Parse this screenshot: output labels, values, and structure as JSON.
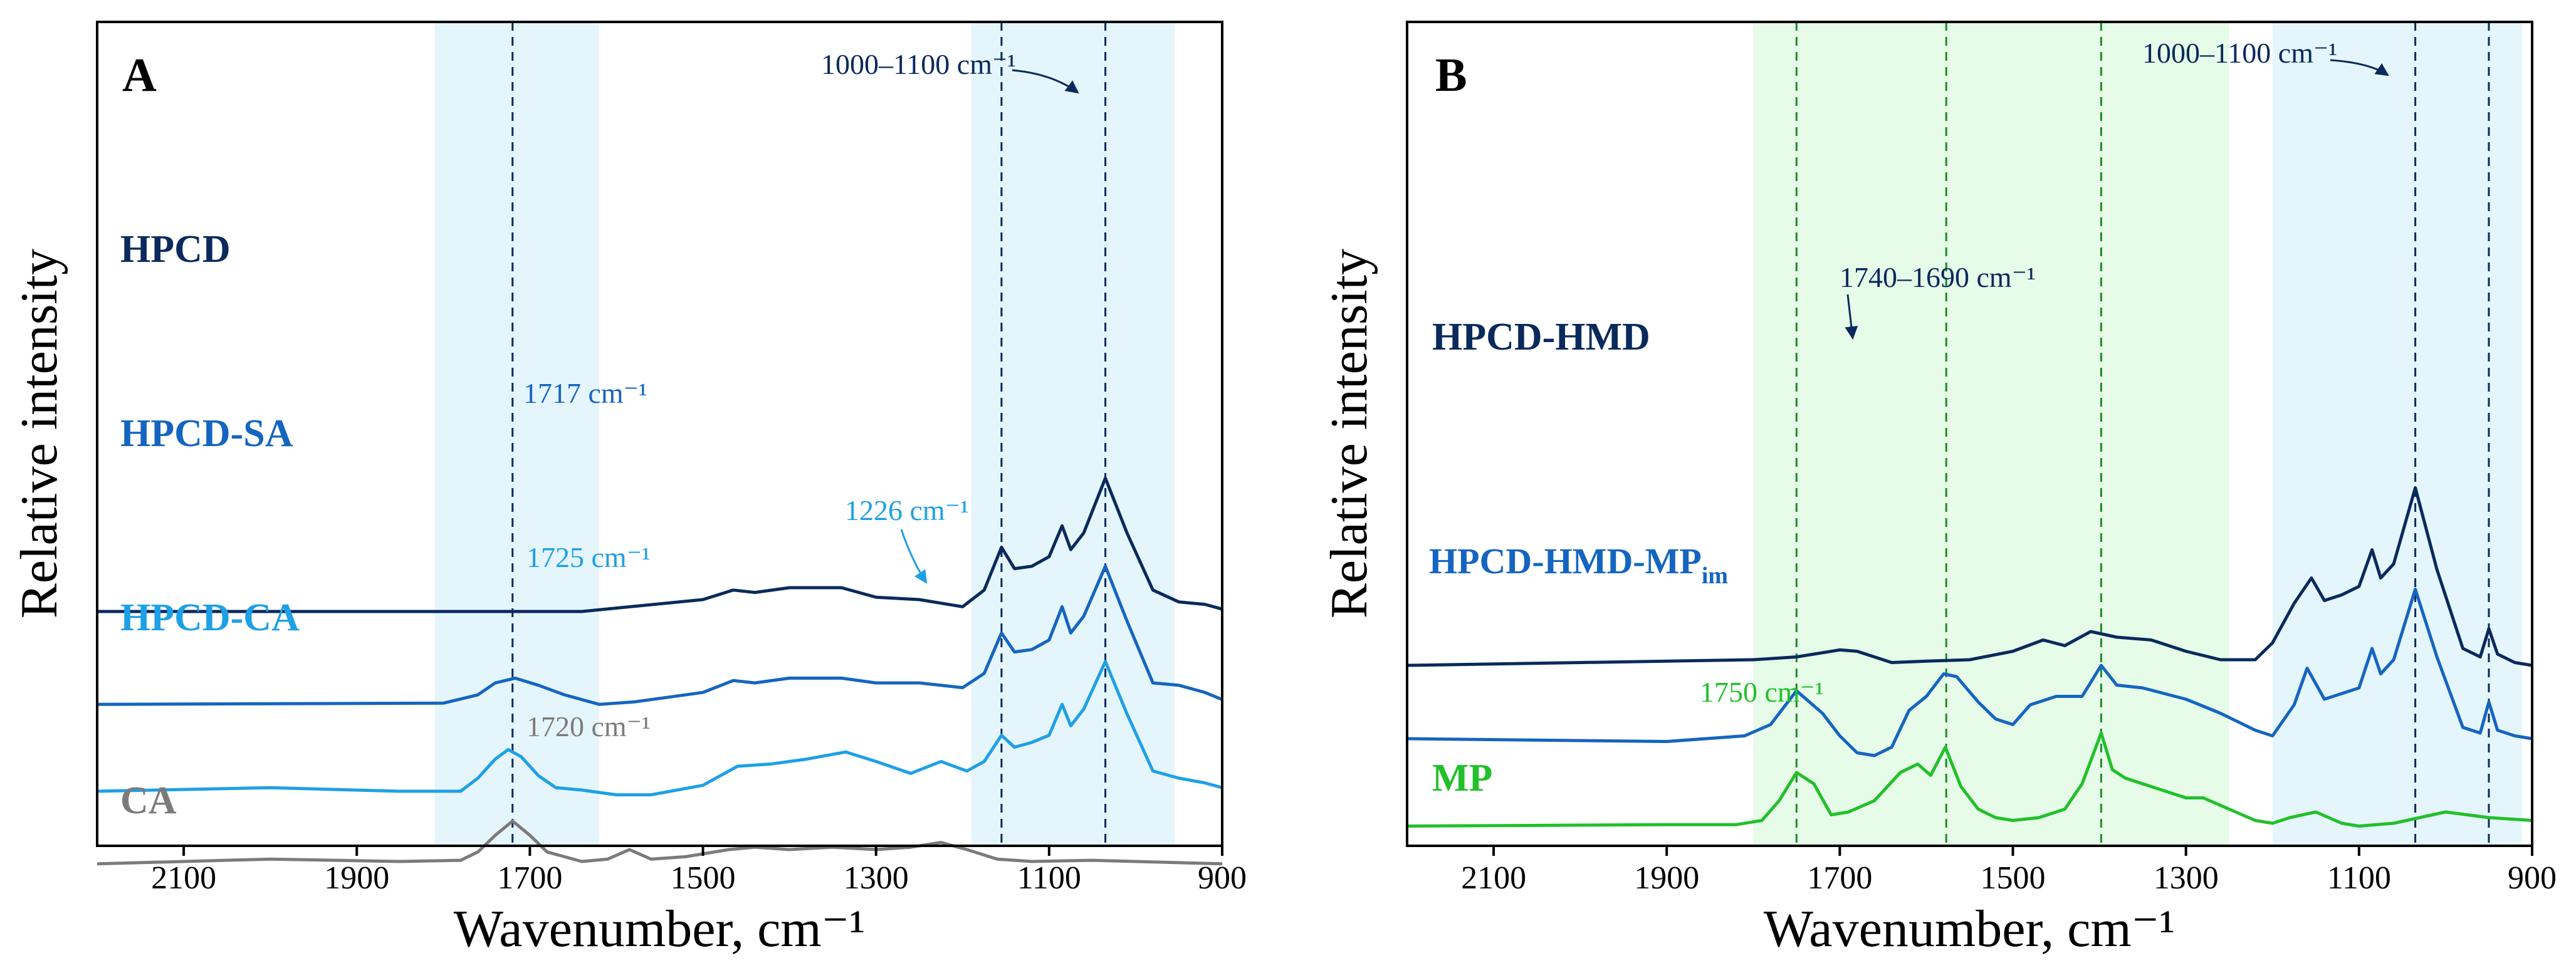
{
  "colors": {
    "navy": "#0a2a5c",
    "blue": "#1565c0",
    "light_blue": "#1ea0e6",
    "gray": "#7b7b7b",
    "green": "#22c02a",
    "dark_green": "#1d8a2e",
    "cyan_band": "#e5f5fc",
    "green_band": "#e6fbe8"
  },
  "chart_data": [
    {
      "type": "line",
      "panel_label": "A",
      "xlabel": "Wavenumber, cm⁻¹",
      "ylabel": "Relative intensity",
      "xlim": [
        2200,
        900
      ],
      "x_reversed": true,
      "xticks": [
        2100,
        1900,
        1700,
        1500,
        1300,
        1100,
        900
      ],
      "y_ticks_shown": false,
      "grid": false,
      "shaded_bands": [
        [
          1810,
          1620
        ],
        [
          1190,
          955
        ]
      ],
      "vlines": [
        1720,
        1155,
        1035
      ],
      "series": [
        {
          "name": "HPCD",
          "color": "navy",
          "baseline": 8.0,
          "x": [
            2200,
            1900,
            1640,
            1500,
            1465,
            1440,
            1400,
            1340,
            1300,
            1250,
            1200,
            1175,
            1155,
            1140,
            1120,
            1100,
            1085,
            1075,
            1060,
            1035,
            1010,
            980,
            950,
            920,
            900
          ],
          "y": [
            0,
            0,
            0,
            0.5,
            0.9,
            0.8,
            1.0,
            1.0,
            0.6,
            0.5,
            0.2,
            0.9,
            2.7,
            1.8,
            1.9,
            2.3,
            3.6,
            2.6,
            3.3,
            5.6,
            3.3,
            0.9,
            0.4,
            0.3,
            0.1
          ]
        },
        {
          "name": "HPCD-SA",
          "color": "blue",
          "baseline": 4.1,
          "x": [
            2200,
            1800,
            1760,
            1740,
            1717,
            1690,
            1660,
            1620,
            1580,
            1500,
            1465,
            1440,
            1400,
            1340,
            1300,
            1250,
            1200,
            1175,
            1155,
            1140,
            1120,
            1100,
            1085,
            1075,
            1060,
            1035,
            1010,
            980,
            950,
            920,
            900
          ],
          "y": [
            0,
            0.05,
            0.4,
            0.9,
            1.1,
            0.8,
            0.4,
            0.0,
            0.1,
            0.5,
            1.0,
            0.9,
            1.1,
            1.1,
            0.9,
            0.9,
            0.7,
            1.3,
            3.0,
            2.2,
            2.3,
            2.7,
            4.1,
            3.0,
            3.7,
            5.8,
            3.5,
            0.9,
            0.8,
            0.5,
            0.2
          ]
        },
        {
          "name": "HPCD-CA",
          "color": "light_blue",
          "baseline": 0.4,
          "x": [
            2200,
            2000,
            1850,
            1780,
            1760,
            1740,
            1725,
            1710,
            1690,
            1670,
            1640,
            1600,
            1560,
            1500,
            1460,
            1420,
            1380,
            1335,
            1300,
            1260,
            1225,
            1195,
            1175,
            1155,
            1140,
            1120,
            1100,
            1085,
            1075,
            1060,
            1035,
            1010,
            980,
            950,
            920,
            900
          ],
          "y": [
            0.05,
            0.2,
            0.05,
            0.05,
            0.6,
            1.4,
            1.8,
            1.5,
            0.7,
            0.2,
            0.1,
            -0.1,
            -0.1,
            0.3,
            1.1,
            1.2,
            1.4,
            1.7,
            1.3,
            0.8,
            1.3,
            0.9,
            1.3,
            2.4,
            1.9,
            2.1,
            2.4,
            3.7,
            2.8,
            3.5,
            5.5,
            3.3,
            0.9,
            0.6,
            0.4,
            0.2
          ]
        },
        {
          "name": "CA",
          "color": "gray",
          "baseline": -2.6,
          "x": [
            2200,
            2000,
            1850,
            1780,
            1760,
            1740,
            1720,
            1700,
            1680,
            1660,
            1640,
            1610,
            1585,
            1560,
            1520,
            1470,
            1440,
            1400,
            1350,
            1300,
            1260,
            1225,
            1195,
            1160,
            1120,
            1050,
            1000,
            950,
            900
          ],
          "y": [
            0,
            0.2,
            0.1,
            0.15,
            0.5,
            1.2,
            1.8,
            1.2,
            0.5,
            0.3,
            0.1,
            0.2,
            0.6,
            0.2,
            0.3,
            0.6,
            0.7,
            0.6,
            0.7,
            0.6,
            0.7,
            0.9,
            0.6,
            0.2,
            0.1,
            0.15,
            0.1,
            0.05,
            0.0
          ]
        }
      ],
      "annotations": [
        {
          "text": "1000–1100 cm⁻¹",
          "color": "navy"
        },
        {
          "text": "1717 cm⁻¹",
          "color": "blue"
        },
        {
          "text": "1725 cm⁻¹",
          "color": "light_blue"
        },
        {
          "text": "1226 cm⁻¹",
          "color": "light_blue"
        },
        {
          "text": "1720 cm⁻¹",
          "color": "gray"
        }
      ]
    },
    {
      "type": "line",
      "panel_label": "B",
      "xlabel": "Wavenumber, cm⁻¹",
      "ylabel": "Relative intensity",
      "xlim": [
        2200,
        900
      ],
      "x_reversed": true,
      "xticks": [
        2100,
        1900,
        1700,
        1500,
        1300,
        1100,
        900
      ],
      "y_ticks_shown": false,
      "grid": false,
      "shaded_bands": [
        [
          1800,
          1250
        ],
        [
          1200,
          912
        ]
      ],
      "green_vlines": [
        1750,
        1577,
        1398
      ],
      "navy_vlines": [
        1035,
        950
      ],
      "series": [
        {
          "name": "HPCD-HMD",
          "color": "navy",
          "baseline": 5.4,
          "x": [
            2200,
            2000,
            1800,
            1750,
            1700,
            1680,
            1640,
            1600,
            1550,
            1500,
            1465,
            1440,
            1410,
            1380,
            1340,
            1300,
            1260,
            1220,
            1200,
            1175,
            1155,
            1140,
            1120,
            1100,
            1085,
            1075,
            1060,
            1035,
            1010,
            980,
            960,
            950,
            940,
            920,
            900
          ],
          "y": [
            0,
            0.1,
            0.2,
            0.3,
            0.55,
            0.5,
            0.1,
            0.15,
            0.2,
            0.5,
            0.9,
            0.7,
            1.2,
            1.0,
            0.9,
            0.5,
            0.2,
            0.2,
            0.8,
            2.2,
            3.1,
            2.3,
            2.5,
            2.8,
            4.1,
            3.1,
            3.6,
            6.3,
            3.4,
            0.6,
            0.3,
            1.3,
            0.4,
            0.1,
            0.0
          ]
        },
        {
          "name": "HPCD-HMD-MP",
          "name_subscript": "im",
          "color": "blue",
          "baseline": 2.8,
          "x": [
            2200,
            1900,
            1810,
            1780,
            1750,
            1720,
            1700,
            1680,
            1660,
            1640,
            1620,
            1600,
            1580,
            1565,
            1540,
            1520,
            1500,
            1480,
            1450,
            1420,
            1398,
            1380,
            1350,
            1300,
            1260,
            1220,
            1200,
            1175,
            1160,
            1140,
            1120,
            1100,
            1085,
            1075,
            1060,
            1035,
            1010,
            980,
            960,
            950,
            940,
            920,
            900
          ],
          "y": [
            0,
            -0.1,
            0.1,
            0.5,
            1.7,
            0.9,
            0.1,
            -0.5,
            -0.6,
            -0.3,
            1.0,
            1.5,
            2.3,
            2.2,
            1.3,
            0.7,
            0.5,
            1.2,
            1.5,
            1.5,
            2.6,
            1.9,
            1.8,
            1.4,
            0.9,
            0.3,
            0.1,
            1.2,
            2.5,
            1.4,
            1.6,
            1.8,
            3.2,
            2.3,
            2.8,
            5.3,
            2.9,
            0.4,
            0.2,
            1.3,
            0.3,
            0.1,
            0.0
          ]
        },
        {
          "name": "MP",
          "color": "green",
          "baseline": -0.3,
          "x": [
            2200,
            1900,
            1820,
            1790,
            1770,
            1750,
            1730,
            1710,
            1690,
            1660,
            1630,
            1610,
            1595,
            1578,
            1560,
            1540,
            1520,
            1500,
            1470,
            1440,
            1420,
            1398,
            1385,
            1370,
            1340,
            1300,
            1280,
            1250,
            1220,
            1200,
            1180,
            1150,
            1120,
            1100,
            1060,
            1000,
            950,
            900
          ],
          "y": [
            0,
            0.05,
            0.05,
            0.2,
            0.9,
            1.9,
            1.5,
            0.4,
            0.5,
            0.9,
            1.9,
            2.2,
            1.8,
            2.8,
            1.4,
            0.6,
            0.3,
            0.2,
            0.3,
            0.6,
            1.5,
            3.3,
            2.0,
            1.7,
            1.4,
            1.0,
            1.0,
            0.6,
            0.2,
            0.1,
            0.3,
            0.5,
            0.1,
            0.0,
            0.1,
            0.5,
            0.3,
            0.2
          ]
        }
      ],
      "annotations": [
        {
          "text": "1000–1100 cm⁻¹",
          "color": "navy"
        },
        {
          "text": "1740–1690 cm⁻¹",
          "color": "navy"
        },
        {
          "text": "1750 cm⁻¹",
          "color": "green"
        }
      ]
    }
  ]
}
